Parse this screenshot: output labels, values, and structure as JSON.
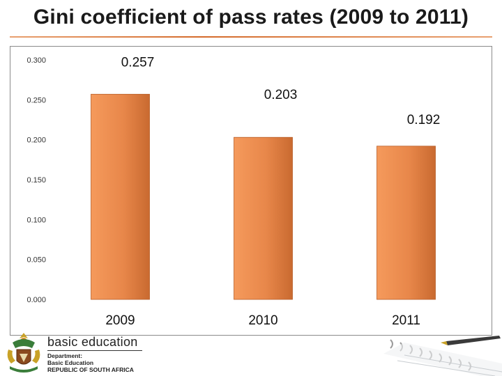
{
  "slide": {
    "title": "Gini coefficient of pass rates (2009 to 2011)"
  },
  "chart_data": {
    "type": "bar",
    "title": "Gini coefficient of pass rates (2009 to 2011)",
    "categories": [
      "2009",
      "2010",
      "2011"
    ],
    "values": [
      0.257,
      0.203,
      0.192
    ],
    "data_labels": [
      "0.257",
      "0.203",
      "0.192"
    ],
    "yticks": [
      "0.000",
      "0.050",
      "0.100",
      "0.150",
      "0.200",
      "0.250",
      "0.300"
    ],
    "ylim": [
      0,
      0.3
    ],
    "xlabel": "",
    "ylabel": "",
    "grid": false,
    "bar_color": "#e8874a"
  },
  "branding": {
    "logo_main": "basic education",
    "dept_line1": "Department:",
    "dept_line2": "Basic Education",
    "country": "REPUBLIC OF SOUTH AFRICA",
    "crest_icon": "coat-of-arms-icon",
    "decor_icon": "pen-notebook-icon"
  }
}
